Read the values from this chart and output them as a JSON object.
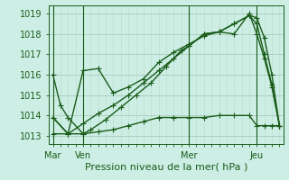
{
  "bg_color": "#cceee4",
  "grid_color_major": "#aaccbb",
  "grid_color_minor": "#bbddcc",
  "line_color": "#1a5c1a",
  "xtick_labels": [
    "Mar",
    "Ven",
    "Mer",
    "Jeu"
  ],
  "xtick_positions": [
    0,
    16,
    72,
    108
  ],
  "ylabel_ticks": [
    1013,
    1014,
    1015,
    1016,
    1017,
    1018,
    1019
  ],
  "xlabel": "Pression niveau de la mer( hPa )",
  "ylim": [
    1012.6,
    1019.4
  ],
  "xlim": [
    -2,
    122
  ],
  "line1": {
    "x": [
      0,
      4,
      8,
      16,
      20,
      28,
      36,
      44,
      52,
      60,
      68,
      72,
      80,
      88,
      96,
      104,
      108,
      112,
      116,
      120
    ],
    "y": [
      1016.0,
      1014.5,
      1013.9,
      1013.1,
      1013.3,
      1013.8,
      1014.4,
      1015.0,
      1015.6,
      1016.4,
      1017.2,
      1017.4,
      1018.0,
      1018.1,
      1018.0,
      1019.0,
      1018.0,
      1016.8,
      1015.4,
      1013.5
    ]
  },
  "line2": {
    "x": [
      0,
      8,
      16,
      24,
      32,
      40,
      48,
      56,
      64,
      72,
      80,
      88,
      96,
      104,
      108,
      112,
      116,
      120
    ],
    "y": [
      1013.9,
      1013.1,
      1016.2,
      1016.3,
      1015.1,
      1015.4,
      1015.8,
      1016.6,
      1017.1,
      1017.5,
      1017.9,
      1018.1,
      1018.5,
      1018.9,
      1018.8,
      1017.8,
      1016.0,
      1013.5
    ]
  },
  "line3": {
    "x": [
      0,
      8,
      16,
      24,
      32,
      40,
      48,
      56,
      64,
      72,
      80,
      88,
      96,
      104,
      108,
      112,
      116,
      120
    ],
    "y": [
      1013.9,
      1013.1,
      1013.6,
      1014.1,
      1014.5,
      1015.0,
      1015.6,
      1016.2,
      1016.8,
      1017.4,
      1018.0,
      1018.1,
      1018.5,
      1018.9,
      1018.5,
      1017.0,
      1015.5,
      1013.5
    ]
  },
  "line4": {
    "x": [
      0,
      16,
      24,
      32,
      40,
      48,
      56,
      64,
      72,
      80,
      88,
      96,
      104,
      108,
      112,
      116,
      120
    ],
    "y": [
      1013.1,
      1013.1,
      1013.2,
      1013.3,
      1013.5,
      1013.7,
      1013.9,
      1013.9,
      1013.9,
      1013.9,
      1014.0,
      1014.0,
      1014.0,
      1013.5,
      1013.5,
      1013.5,
      1013.5
    ]
  },
  "vline_positions": [
    0,
    16,
    72,
    108
  ],
  "marker": "+",
  "markersize": 4,
  "linewidth": 1.0,
  "xlabel_fontsize": 8,
  "tick_fontsize": 7
}
